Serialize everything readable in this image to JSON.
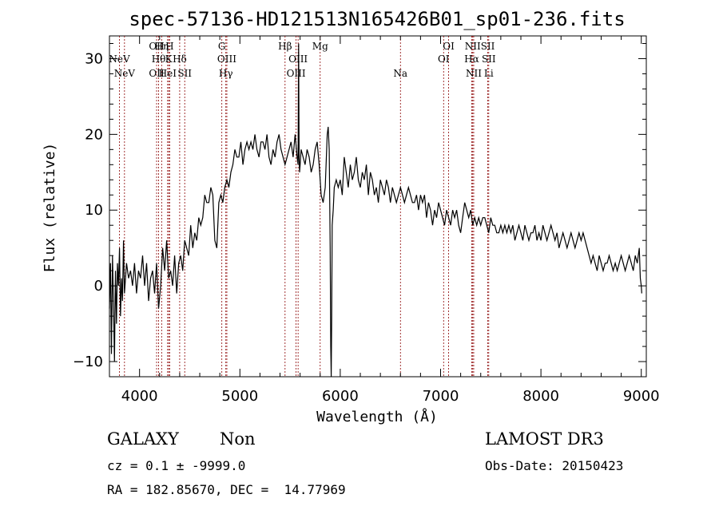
{
  "chart_data": {
    "type": "line",
    "title": "spec-57136-HD121513N165426B01_sp01-236.fits",
    "xlabel": "Wavelength (Å)",
    "ylabel": "Flux (relative)",
    "xlim": [
      3700,
      9050
    ],
    "ylim": [
      -12,
      33
    ],
    "xticks": [
      4000,
      5000,
      6000,
      7000,
      8000,
      9000
    ],
    "yticks": [
      -10,
      0,
      10,
      20,
      30
    ],
    "grid": false,
    "series": [
      {
        "x": [
          3700,
          3710,
          3720,
          3730,
          3740,
          3750,
          3760,
          3770,
          3780,
          3790,
          3800,
          3810,
          3820,
          3830,
          3840,
          3850,
          3870,
          3890,
          3910,
          3930,
          3950,
          3970,
          3990,
          4010,
          4030,
          4050,
          4070,
          4090,
          4110,
          4130,
          4150,
          4170,
          4190,
          4210,
          4230,
          4250,
          4270,
          4290,
          4310,
          4330,
          4350,
          4370,
          4390,
          4410,
          4430,
          4450,
          4470,
          4490,
          4510,
          4530,
          4550,
          4570,
          4590,
          4610,
          4630,
          4650,
          4670,
          4690,
          4710,
          4730,
          4750,
          4770,
          4790,
          4810,
          4830,
          4850,
          4870,
          4890,
          4910,
          4930,
          4950,
          4970,
          4990,
          5010,
          5030,
          5050,
          5070,
          5090,
          5110,
          5130,
          5150,
          5170,
          5190,
          5210,
          5230,
          5250,
          5270,
          5290,
          5310,
          5330,
          5350,
          5370,
          5390,
          5410,
          5430,
          5450,
          5470,
          5490,
          5510,
          5530,
          5550,
          5570,
          5580,
          5585,
          5590,
          5595,
          5600,
          5610,
          5630,
          5650,
          5670,
          5690,
          5710,
          5730,
          5750,
          5770,
          5790,
          5810,
          5830,
          5850,
          5870,
          5880,
          5890,
          5900,
          5905,
          5910,
          5915,
          5920,
          5930,
          5940,
          5960,
          5980,
          6000,
          6020,
          6040,
          6060,
          6080,
          6100,
          6120,
          6140,
          6160,
          6180,
          6200,
          6220,
          6240,
          6260,
          6280,
          6300,
          6320,
          6340,
          6360,
          6380,
          6400,
          6420,
          6440,
          6460,
          6480,
          6500,
          6520,
          6540,
          6560,
          6580,
          6600,
          6620,
          6640,
          6660,
          6680,
          6700,
          6720,
          6740,
          6760,
          6780,
          6800,
          6820,
          6840,
          6860,
          6880,
          6900,
          6920,
          6940,
          6960,
          6980,
          7000,
          7020,
          7040,
          7060,
          7080,
          7100,
          7120,
          7140,
          7160,
          7180,
          7200,
          7220,
          7240,
          7260,
          7280,
          7300,
          7320,
          7340,
          7360,
          7380,
          7400,
          7420,
          7440,
          7460,
          7480,
          7500,
          7520,
          7540,
          7560,
          7580,
          7600,
          7620,
          7640,
          7660,
          7680,
          7700,
          7720,
          7740,
          7760,
          7780,
          7800,
          7820,
          7840,
          7860,
          7880,
          7900,
          7920,
          7940,
          7960,
          7980,
          8000,
          8020,
          8040,
          8060,
          8080,
          8100,
          8120,
          8140,
          8160,
          8180,
          8200,
          8220,
          8240,
          8260,
          8280,
          8300,
          8320,
          8340,
          8360,
          8380,
          8400,
          8420,
          8440,
          8460,
          8480,
          8500,
          8520,
          8540,
          8560,
          8580,
          8600,
          8620,
          8640,
          8660,
          8680,
          8700,
          8720,
          8740,
          8760,
          8780,
          8800,
          8820,
          8840,
          8860,
          8880,
          8900,
          8920,
          8940,
          8960,
          8980,
          8990,
          9000,
          9005
        ],
        "y": [
          -3,
          3,
          -9,
          4,
          -2,
          -10,
          2,
          -5,
          3,
          0,
          5,
          -4,
          1,
          -2,
          6,
          -1,
          3,
          1,
          2,
          0,
          3,
          -1,
          2,
          1,
          4,
          0,
          3,
          -2,
          1,
          2,
          -1,
          3,
          -3,
          0,
          5,
          2,
          6,
          1,
          2,
          0,
          4,
          -1,
          3,
          4,
          2,
          6,
          5,
          4,
          8,
          5,
          7,
          6,
          9,
          8,
          9,
          12,
          11,
          11,
          13,
          12,
          6,
          5,
          11,
          12,
          11,
          13,
          14,
          13,
          15,
          16,
          18,
          17,
          17,
          19,
          16,
          18,
          19,
          18,
          19,
          18,
          20,
          18,
          17,
          19,
          19,
          18,
          20,
          17,
          16,
          18,
          17,
          19,
          20,
          18,
          17,
          16,
          17,
          18,
          19,
          17,
          20,
          17,
          16,
          32,
          17,
          15,
          16,
          18,
          17,
          16,
          18,
          17,
          15,
          16,
          18,
          19,
          16,
          12,
          11,
          13,
          20,
          21,
          18,
          5,
          -8,
          -12,
          -4,
          8,
          10,
          13,
          14,
          13,
          14,
          12,
          17,
          15,
          13,
          16,
          14,
          15,
          17,
          14,
          13,
          15,
          14,
          16,
          12,
          15,
          14,
          12,
          13,
          11,
          14,
          13,
          12,
          14,
          13,
          11,
          13,
          12,
          11,
          12,
          13,
          12,
          11,
          12,
          13,
          12,
          11,
          11,
          12,
          10,
          12,
          11,
          12,
          9,
          11,
          10,
          8,
          10,
          9,
          11,
          10,
          9,
          8,
          10,
          9,
          8,
          10,
          9,
          10,
          8,
          7,
          9,
          11,
          10,
          9,
          10,
          8,
          9,
          8,
          9,
          8,
          9,
          9,
          8,
          7,
          9,
          8,
          8,
          7,
          7,
          8,
          7,
          8,
          7,
          8,
          7,
          8,
          6,
          7,
          8,
          7,
          6,
          8,
          7,
          6,
          7,
          7,
          8,
          6,
          7,
          6,
          8,
          7,
          6,
          7,
          8,
          7,
          6,
          7,
          5,
          6,
          7,
          6,
          5,
          6,
          7,
          6,
          5,
          6,
          7,
          6,
          7,
          6,
          5,
          4,
          3,
          4,
          3,
          2,
          4,
          3,
          2,
          3,
          3,
          4,
          3,
          2,
          3,
          2,
          3,
          4,
          3,
          2,
          3,
          4,
          3,
          2,
          4,
          3,
          5,
          1,
          0,
          -1
        ]
      }
    ],
    "line_marks": [
      {
        "label": "NeV",
        "x": 3800,
        "row": 1
      },
      {
        "label": "NeV",
        "x": 3850,
        "row": 2
      },
      {
        "label": "OII",
        "x": 4170,
        "row": 0
      },
      {
        "label": "Hη",
        "x": 4220,
        "row": 0
      },
      {
        "label": "H",
        "x": 4300,
        "row": 0
      },
      {
        "label": "Hθ",
        "x": 4190,
        "row": 1
      },
      {
        "label": "K",
        "x": 4290,
        "row": 1
      },
      {
        "label": "OII",
        "x": 4170,
        "row": 2
      },
      {
        "label": "HeI",
        "x": 4280,
        "row": 2
      },
      {
        "label": "Hδ",
        "x": 4400,
        "row": 1
      },
      {
        "label": "SII",
        "x": 4450,
        "row": 2
      },
      {
        "label": "G",
        "x": 4820,
        "row": 0
      },
      {
        "label": "OIII",
        "x": 4870,
        "row": 1
      },
      {
        "label": "Hγ",
        "x": 4860,
        "row": 2
      },
      {
        "label": "Hβ",
        "x": 5450,
        "row": 0
      },
      {
        "label": "OIII",
        "x": 5580,
        "row": 1
      },
      {
        "label": "OIII",
        "x": 5560,
        "row": 2
      },
      {
        "label": "Mg",
        "x": 5800,
        "row": 0
      },
      {
        "label": "Na",
        "x": 6600,
        "row": 2
      },
      {
        "label": "OI",
        "x": 7080,
        "row": 0
      },
      {
        "label": "OI",
        "x": 7030,
        "row": 1
      },
      {
        "label": "NII",
        "x": 7320,
        "row": 0
      },
      {
        "label": "SII",
        "x": 7470,
        "row": 0
      },
      {
        "label": "Hα",
        "x": 7310,
        "row": 1
      },
      {
        "label": "SII",
        "x": 7480,
        "row": 1
      },
      {
        "label": "NII",
        "x": 7330,
        "row": 2
      },
      {
        "label": "Li",
        "x": 7480,
        "row": 2
      }
    ],
    "line_colors": {
      "marker": "#8b0000",
      "data": "#000000"
    }
  },
  "info": {
    "class_label": "GALAXY",
    "subclass_label": "Non",
    "survey": "LAMOST DR3",
    "cz_text": "cz = 0.1 ± -9999.0",
    "obs_date": "Obs-Date: 20150423",
    "radec_text": "RA = 182.85670, DEC =  14.77969"
  }
}
